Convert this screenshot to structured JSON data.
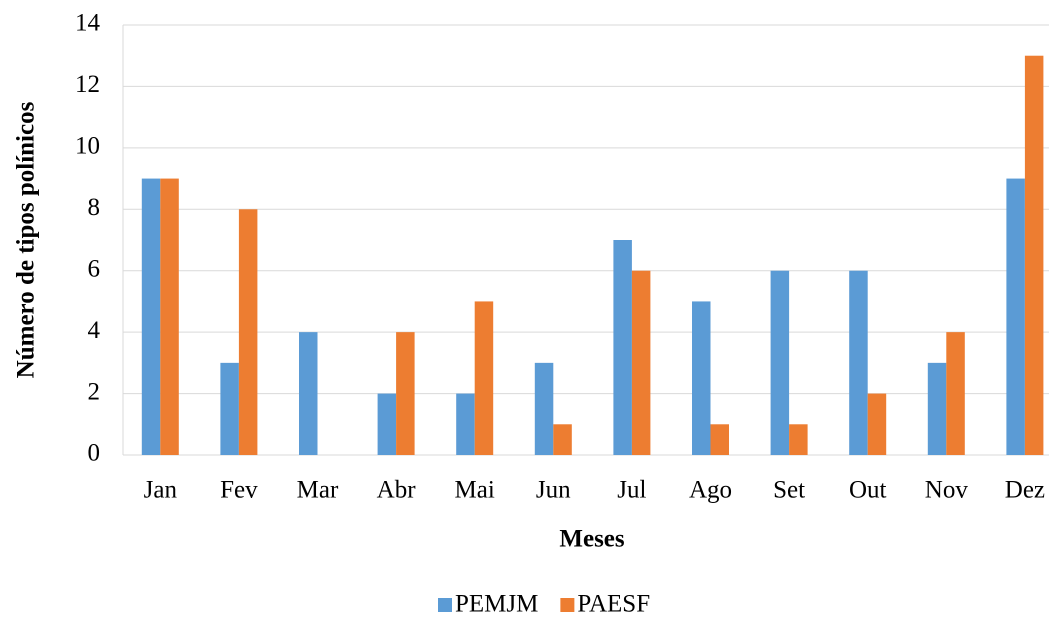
{
  "chart_data": {
    "type": "bar",
    "categories": [
      "Jan",
      "Fev",
      "Mar",
      "Abr",
      "Mai",
      "Jun",
      "Jul",
      "Ago",
      "Set",
      "Out",
      "Nov",
      "Dez"
    ],
    "series": [
      {
        "name": "PEMJM",
        "color": "#5b9bd5",
        "values": [
          9,
          3,
          4,
          2,
          2,
          3,
          7,
          5,
          6,
          6,
          3,
          9
        ]
      },
      {
        "name": "PAESF",
        "color": "#ed7d31",
        "values": [
          9,
          8,
          0,
          4,
          5,
          1,
          6,
          1,
          1,
          2,
          4,
          13
        ]
      }
    ],
    "x_label": "Meses",
    "y_label": "Número de tipos polínicos",
    "ylim": [
      0,
      14
    ],
    "yticks": [
      0,
      2,
      4,
      6,
      8,
      10,
      12,
      14
    ],
    "grid": true,
    "legend": "bottom"
  }
}
